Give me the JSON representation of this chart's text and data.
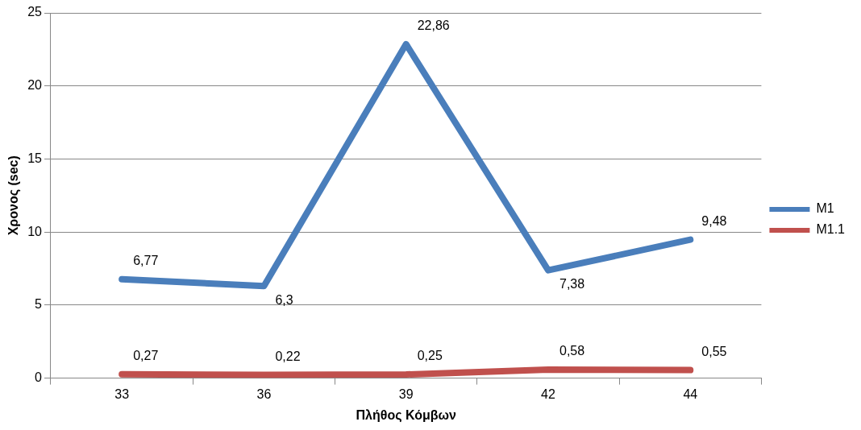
{
  "chart_data": {
    "type": "line",
    "xlabel": "Πλήθος Κόμβων",
    "ylabel": "Χρονος (sec)",
    "categories": [
      "33",
      "36",
      "39",
      "42",
      "44"
    ],
    "series": [
      {
        "name": "M1",
        "color": "#4a7ebb",
        "values": [
          6.77,
          6.3,
          22.86,
          7.38,
          9.48
        ],
        "value_labels": [
          "6,77",
          "6,3",
          "22,86",
          "7,38",
          "9,48"
        ]
      },
      {
        "name": "M1.1",
        "color": "#c0504d",
        "values": [
          0.27,
          0.22,
          0.25,
          0.58,
          0.55
        ],
        "value_labels": [
          "0,27",
          "0,22",
          "0,25",
          "0,58",
          "0,55"
        ]
      }
    ],
    "ylim": [
      0,
      25
    ],
    "yticks": [
      0,
      5,
      10,
      15,
      20,
      25
    ],
    "grid": "y",
    "legend": "right",
    "marker": "none",
    "line_style": "solid"
  }
}
